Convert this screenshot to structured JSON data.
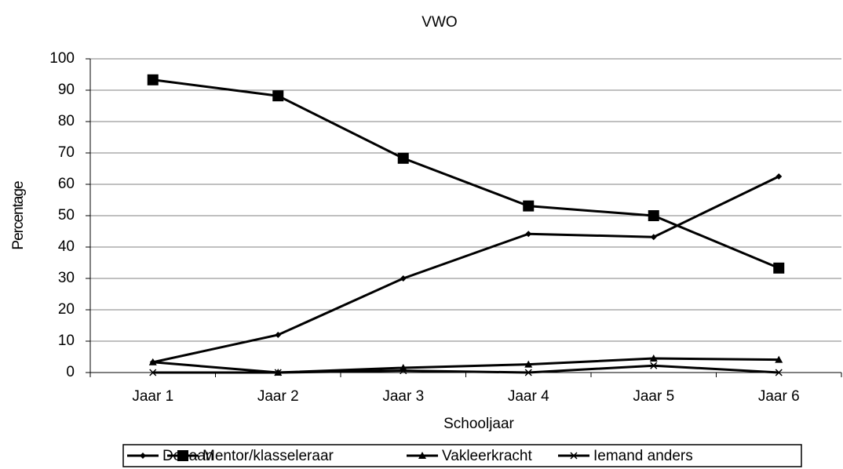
{
  "chart_data": {
    "type": "line",
    "title": "VWO",
    "x_label": "Schooljaar",
    "y_label": "Percentage",
    "categories": [
      "Jaar 1",
      "Jaar 2",
      "Jaar 3",
      "Jaar 4",
      "Jaar 5",
      "Jaar 6"
    ],
    "series": [
      {
        "name": "Decaan",
        "color": "#000000",
        "marker": "diamond",
        "values": [
          3.3,
          12,
          30,
          44.2,
          43.2,
          62.5
        ]
      },
      {
        "name": "Mentor/klasseleraar",
        "color": "#000000",
        "marker": "square",
        "values": [
          93.3,
          88.2,
          68.3,
          53.1,
          50,
          33.3
        ]
      },
      {
        "name": "Vakleerkracht",
        "color": "#000000",
        "marker": "triangle",
        "values": [
          3.3,
          0,
          1.5,
          2.6,
          4.5,
          4.1
        ]
      },
      {
        "name": "Iemand anders",
        "color": "#000000",
        "marker": "x",
        "values": [
          0,
          0,
          0.6,
          0,
          2.2,
          0
        ]
      }
    ],
    "ylim": [
      0,
      100
    ],
    "yticks": [
      0,
      10,
      20,
      30,
      40,
      50,
      60,
      70,
      80,
      90,
      100
    ],
    "grid": true,
    "legend": "bottom"
  }
}
